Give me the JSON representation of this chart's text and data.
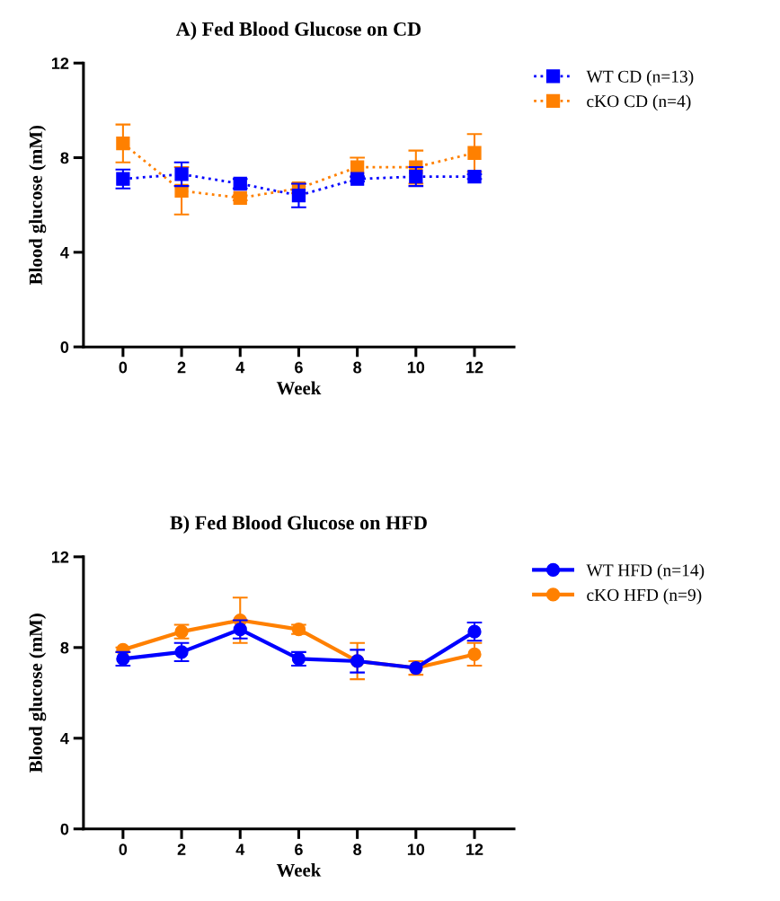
{
  "chart_data": [
    {
      "type": "line",
      "title": "A) Fed Blood Glucose on CD",
      "xlabel": "Week",
      "ylabel": "Blood glucose (mM)",
      "x": [
        0,
        2,
        4,
        6,
        8,
        10,
        12
      ],
      "xlim": [
        -1.35,
        13.35
      ],
      "xticks": [
        0,
        2,
        4,
        6,
        8,
        10,
        12
      ],
      "ylim": [
        0,
        12
      ],
      "yticks": [
        0,
        4,
        8,
        12
      ],
      "marker": "square",
      "line_style": "dotted",
      "grid": false,
      "legend": "top right",
      "series": [
        {
          "name": "WT CD (n=13)",
          "color": "#0000ff",
          "values": [
            7.1,
            7.3,
            6.9,
            6.4,
            7.1,
            7.2,
            7.2
          ],
          "errors": [
            0.4,
            0.5,
            0.2,
            0.5,
            0.1,
            0.4,
            0.1
          ]
        },
        {
          "name": "cKO CD (n=4)",
          "color": "#ff8000",
          "values": [
            8.6,
            6.6,
            6.3,
            6.7,
            7.6,
            7.6,
            8.2
          ],
          "errors": [
            0.8,
            1.0,
            0.1,
            0.2,
            0.4,
            0.7,
            0.8
          ]
        }
      ]
    },
    {
      "type": "line",
      "title": "B) Fed Blood Glucose on HFD",
      "xlabel": "Week",
      "ylabel": "Blood glucose (mM)",
      "x": [
        0,
        2,
        4,
        6,
        8,
        10,
        12
      ],
      "xlim": [
        -1.35,
        13.35
      ],
      "xticks": [
        0,
        2,
        4,
        6,
        8,
        10,
        12
      ],
      "ylim": [
        0,
        12
      ],
      "yticks": [
        0,
        4,
        8,
        12
      ],
      "marker": "circle",
      "line_style": "solid",
      "grid": false,
      "legend": "top right",
      "series": [
        {
          "name": "WT HFD (n=14)",
          "color": "#0000ff",
          "values": [
            7.5,
            7.8,
            8.8,
            7.5,
            7.4,
            7.1,
            8.7
          ],
          "errors": [
            0.3,
            0.4,
            0.4,
            0.3,
            0.5,
            null,
            0.4
          ]
        },
        {
          "name": "cKO HFD (n=9)",
          "color": "#ff8000",
          "values": [
            7.9,
            8.7,
            9.2,
            8.8,
            7.4,
            7.1,
            7.7
          ],
          "errors": [
            0.1,
            0.3,
            1.0,
            0.2,
            0.8,
            0.3,
            0.5
          ]
        }
      ]
    }
  ]
}
